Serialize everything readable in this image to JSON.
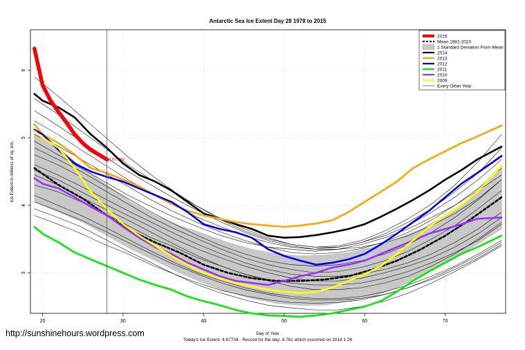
{
  "watermark": "http://sunshinehours.wordpress.com",
  "chart_data": {
    "type": "line",
    "title": "Antarctic Sea Ice Extent Day 28 1978 to 2015",
    "xlabel": "Day of Year",
    "ylabel": "Ice Extent in millions of sq. km.",
    "xlim": [
      18.5,
      77.5
    ],
    "ylim": [
      2.4,
      6.6
    ],
    "x_ticks": [
      20,
      30,
      40,
      50,
      60,
      70
    ],
    "y_ticks": [
      3,
      4,
      5,
      6
    ],
    "vline_x": 28,
    "grid": true,
    "legend_position": "top-right",
    "legend": {
      "y2015": "2015",
      "mean": "Mean 1981-2010",
      "band": "1 Standard Deviation From Mean",
      "y2014": "2014",
      "y2013": "2013",
      "y2012": "2012",
      "y2011": "2011",
      "y2010": "2010",
      "y2009": "2009",
      "other": "Every Other Year"
    },
    "annotation": {
      "x": 28,
      "y": 4.67734,
      "text": "4.67734"
    },
    "footer": "Today's Ice Extent: 4.67734  - Record for the day: 4.761 which occurred on 2014 1 28",
    "colors": {
      "y2015": "#ff0000",
      "mean": "#000000",
      "band": "#c8c8c8",
      "y2014": "#000000",
      "y2013": "#ffa500",
      "y2012": "#0000ff",
      "y2011": "#00ee00",
      "y2010": "#9b30ff",
      "y2009": "#ffff00",
      "other": "#000000"
    },
    "band": {
      "x": [
        19,
        22,
        25,
        28,
        31,
        34,
        37,
        40,
        43,
        46,
        49,
        52,
        55,
        58,
        61,
        64,
        67,
        70,
        73,
        77
      ],
      "upper": [
        5.05,
        4.85,
        4.55,
        4.3,
        4.05,
        3.85,
        3.7,
        3.58,
        3.45,
        3.35,
        3.28,
        3.25,
        3.26,
        3.3,
        3.38,
        3.5,
        3.65,
        3.85,
        4.1,
        4.6
      ],
      "lower": [
        4.05,
        3.9,
        3.75,
        3.55,
        3.35,
        3.18,
        3.0,
        2.85,
        2.72,
        2.62,
        2.55,
        2.52,
        2.52,
        2.58,
        2.65,
        2.78,
        2.95,
        3.15,
        3.35,
        3.65
      ]
    },
    "series": [
      {
        "key": "mean",
        "name": "Mean 1981-2010",
        "width": 2.6,
        "dash": "4,3",
        "x": [
          19,
          22,
          25,
          28,
          31,
          34,
          37,
          40,
          43,
          46,
          49,
          52,
          55,
          58,
          61,
          64,
          67,
          70,
          73,
          77
        ],
        "y": [
          4.55,
          4.3,
          4.1,
          3.85,
          3.62,
          3.45,
          3.3,
          3.12,
          3.0,
          2.92,
          2.88,
          2.88,
          2.9,
          2.95,
          3.05,
          3.18,
          3.35,
          3.55,
          3.78,
          4.12
        ]
      },
      {
        "key": "y2014",
        "name": "2014",
        "width": 2.6,
        "x": [
          19,
          20,
          22,
          24,
          26,
          28,
          30,
          32,
          34,
          36,
          38,
          40,
          42,
          44,
          46,
          48,
          50,
          52,
          54,
          56,
          58,
          60,
          62,
          64,
          66,
          68,
          70,
          72,
          74,
          77
        ],
        "y": [
          5.65,
          5.55,
          5.45,
          5.3,
          5.05,
          4.85,
          4.62,
          4.45,
          4.35,
          4.22,
          4.05,
          3.88,
          3.8,
          3.72,
          3.65,
          3.55,
          3.52,
          3.53,
          3.56,
          3.6,
          3.65,
          3.72,
          3.83,
          3.95,
          4.08,
          4.22,
          4.38,
          4.52,
          4.68,
          4.87
        ]
      },
      {
        "key": "y2013",
        "name": "2013",
        "width": 2.6,
        "x": [
          19,
          20,
          22,
          24,
          26,
          28,
          30,
          32,
          34,
          36,
          38,
          40,
          42,
          44,
          46,
          48,
          50,
          52,
          54,
          56,
          58,
          60,
          62,
          64,
          66,
          68,
          70,
          72,
          74,
          77
        ],
        "y": [
          5.2,
          5.05,
          4.92,
          4.75,
          4.55,
          4.48,
          4.38,
          4.28,
          4.15,
          4.02,
          3.92,
          3.85,
          3.8,
          3.75,
          3.72,
          3.7,
          3.68,
          3.7,
          3.73,
          3.78,
          3.9,
          4.05,
          4.2,
          4.35,
          4.55,
          4.68,
          4.8,
          4.92,
          5.02,
          5.18
        ]
      },
      {
        "key": "y2012",
        "name": "2012",
        "width": 2.6,
        "x": [
          19,
          20,
          22,
          24,
          26,
          28,
          30,
          32,
          34,
          36,
          38,
          40,
          42,
          44,
          46,
          48,
          50,
          52,
          54,
          56,
          58,
          60,
          62,
          64,
          66,
          68,
          70,
          72,
          74,
          77
        ],
        "y": [
          5.12,
          5.05,
          4.82,
          4.62,
          4.5,
          4.42,
          4.35,
          4.25,
          4.15,
          4.05,
          3.9,
          3.72,
          3.65,
          3.6,
          3.52,
          3.35,
          3.25,
          3.18,
          3.12,
          3.15,
          3.2,
          3.28,
          3.42,
          3.58,
          3.75,
          3.92,
          4.12,
          4.32,
          4.48,
          4.73
        ]
      },
      {
        "key": "y2011",
        "name": "2011",
        "width": 2.6,
        "x": [
          19,
          20,
          22,
          24,
          26,
          28,
          30,
          32,
          34,
          36,
          38,
          40,
          42,
          44,
          46,
          48,
          50,
          52,
          54,
          56,
          58,
          60,
          62,
          64,
          66,
          68,
          70,
          72,
          74,
          77
        ],
        "y": [
          3.68,
          3.58,
          3.45,
          3.3,
          3.2,
          3.1,
          3.0,
          2.9,
          2.82,
          2.75,
          2.65,
          2.58,
          2.52,
          2.45,
          2.4,
          2.37,
          2.36,
          2.35,
          2.37,
          2.4,
          2.45,
          2.5,
          2.58,
          2.72,
          2.88,
          3.02,
          3.15,
          3.28,
          3.38,
          3.55
        ]
      },
      {
        "key": "y2010",
        "name": "2010",
        "width": 2.6,
        "x": [
          19,
          20,
          22,
          24,
          26,
          28,
          30,
          32,
          34,
          36,
          38,
          40,
          42,
          44,
          46,
          48,
          50,
          52,
          54,
          56,
          58,
          60,
          62,
          64,
          66,
          68,
          70,
          72,
          74,
          77
        ],
        "y": [
          4.4,
          4.32,
          4.25,
          4.12,
          3.98,
          3.85,
          3.68,
          3.52,
          3.38,
          3.28,
          3.15,
          3.05,
          2.95,
          2.88,
          2.85,
          2.82,
          2.88,
          2.95,
          3.0,
          3.08,
          3.12,
          3.18,
          3.28,
          3.38,
          3.48,
          3.58,
          3.65,
          3.72,
          3.8,
          3.82
        ]
      },
      {
        "key": "y2009",
        "name": "2009",
        "width": 2.6,
        "x": [
          19,
          20,
          22,
          24,
          26,
          28,
          30,
          32,
          34,
          36,
          38,
          40,
          42,
          44,
          46,
          48,
          50,
          52,
          54,
          56,
          58,
          60,
          62,
          64,
          66,
          68,
          70,
          72,
          74,
          77
        ],
        "y": [
          5.1,
          5.0,
          4.85,
          4.55,
          4.2,
          3.95,
          3.72,
          3.55,
          3.4,
          3.25,
          3.12,
          3.0,
          2.92,
          2.85,
          2.8,
          2.75,
          2.72,
          2.7,
          2.72,
          2.78,
          2.88,
          2.98,
          3.1,
          3.28,
          3.48,
          3.68,
          3.85,
          4.0,
          4.2,
          4.58
        ]
      },
      {
        "key": "y2015",
        "name": "2015",
        "width": 5.5,
        "x": [
          19,
          20,
          21,
          22,
          23,
          24,
          25,
          26,
          27,
          28
        ],
        "y": [
          6.32,
          5.78,
          5.55,
          5.38,
          5.22,
          5.05,
          4.92,
          4.82,
          4.75,
          4.67734
        ]
      }
    ],
    "other_years": [
      [
        4.95,
        4.75,
        4.55,
        4.35,
        4.15,
        3.98,
        3.82,
        3.68,
        3.55,
        3.45,
        3.38,
        3.35,
        3.32,
        3.35,
        3.42,
        3.52,
        3.65,
        3.82,
        4.0,
        4.22,
        4.45
      ],
      [
        4.3,
        4.2,
        4.05,
        3.88,
        3.7,
        3.52,
        3.38,
        3.22,
        3.1,
        2.98,
        2.9,
        2.85,
        2.82,
        2.82,
        2.85,
        2.92,
        3.02,
        3.15,
        3.3,
        3.48,
        3.72
      ],
      [
        5.4,
        5.18,
        4.95,
        4.72,
        4.5,
        4.3,
        4.1,
        3.92,
        3.75,
        3.6,
        3.48,
        3.4,
        3.35,
        3.35,
        3.38,
        3.45,
        3.55,
        3.7,
        3.88,
        4.1,
        4.38
      ],
      [
        4.15,
        4.0,
        3.85,
        3.68,
        3.5,
        3.32,
        3.15,
        3.0,
        2.88,
        2.78,
        2.7,
        2.65,
        2.62,
        2.62,
        2.65,
        2.72,
        2.82,
        2.95,
        3.1,
        3.28,
        3.48
      ],
      [
        5.58,
        5.35,
        5.1,
        4.85,
        4.6,
        4.38,
        4.18,
        3.98,
        3.8,
        3.65,
        3.52,
        3.42,
        3.38,
        3.38,
        3.45,
        3.58,
        3.75,
        3.95,
        4.2,
        4.48,
        4.85
      ],
      [
        4.6,
        4.45,
        4.28,
        4.1,
        3.92,
        3.75,
        3.58,
        3.42,
        3.28,
        3.15,
        3.05,
        2.98,
        2.95,
        2.95,
        2.98,
        3.05,
        3.15,
        3.28,
        3.45,
        3.65,
        3.9
      ],
      [
        3.95,
        3.82,
        3.68,
        3.5,
        3.32,
        3.15,
        2.98,
        2.82,
        2.7,
        2.6,
        2.52,
        2.48,
        2.45,
        2.45,
        2.5,
        2.58,
        2.7,
        2.85,
        3.02,
        3.2,
        3.4
      ],
      [
        4.75,
        4.6,
        4.42,
        4.22,
        4.02,
        3.82,
        3.65,
        3.5,
        3.35,
        3.22,
        3.12,
        3.05,
        3.0,
        3.02,
        3.08,
        3.18,
        3.32,
        3.5,
        3.7,
        3.95,
        4.22
      ],
      [
        5.9,
        5.62,
        5.32,
        5.02,
        4.72,
        4.45,
        4.2,
        3.98,
        3.78,
        3.62,
        3.5,
        3.42,
        3.38,
        3.4,
        3.48,
        3.62,
        3.8,
        4.02,
        4.3,
        4.65,
        5.05
      ],
      [
        4.45,
        4.3,
        4.12,
        3.95,
        3.78,
        3.6,
        3.42,
        3.25,
        3.1,
        2.98,
        2.88,
        2.8,
        2.75,
        2.75,
        2.78,
        2.85,
        2.95,
        3.1,
        3.28,
        3.5,
        3.75
      ],
      [
        4.85,
        4.68,
        4.5,
        4.3,
        4.1,
        3.9,
        3.72,
        3.55,
        3.4,
        3.28,
        3.18,
        3.12,
        3.1,
        3.12,
        3.18,
        3.28,
        3.42,
        3.6,
        3.82,
        4.08,
        4.38
      ],
      [
        4.05,
        3.92,
        3.78,
        3.62,
        3.45,
        3.28,
        3.12,
        2.98,
        2.85,
        2.75,
        2.68,
        2.62,
        2.6,
        2.6,
        2.62,
        2.68,
        2.78,
        2.92,
        3.08,
        3.25,
        3.45
      ],
      [
        5.25,
        5.05,
        4.82,
        4.6,
        4.38,
        4.18,
        4.0,
        3.82,
        3.68,
        3.55,
        3.45,
        3.38,
        3.35,
        3.38,
        3.45,
        3.55,
        3.7,
        3.9,
        4.12,
        4.38,
        4.68
      ],
      [
        4.52,
        4.38,
        4.2,
        4.02,
        3.85,
        3.68,
        3.5,
        3.35,
        3.22,
        3.1,
        3.0,
        2.92,
        2.88,
        2.88,
        2.92,
        3.0,
        3.1,
        3.22,
        3.38,
        3.58,
        3.82
      ],
      [
        3.85,
        3.72,
        3.58,
        3.42,
        3.28,
        3.12,
        2.98,
        2.85,
        2.74,
        2.66,
        2.6,
        2.56,
        2.55,
        2.56,
        2.6,
        2.68,
        2.78,
        2.9,
        3.05,
        3.22,
        3.42
      ],
      [
        5.05,
        4.88,
        4.68,
        4.48,
        4.28,
        4.08,
        3.9,
        3.74,
        3.6,
        3.48,
        3.38,
        3.3,
        3.28,
        3.3,
        3.36,
        3.46,
        3.6,
        3.78,
        4.0,
        4.25,
        4.55
      ]
    ]
  }
}
